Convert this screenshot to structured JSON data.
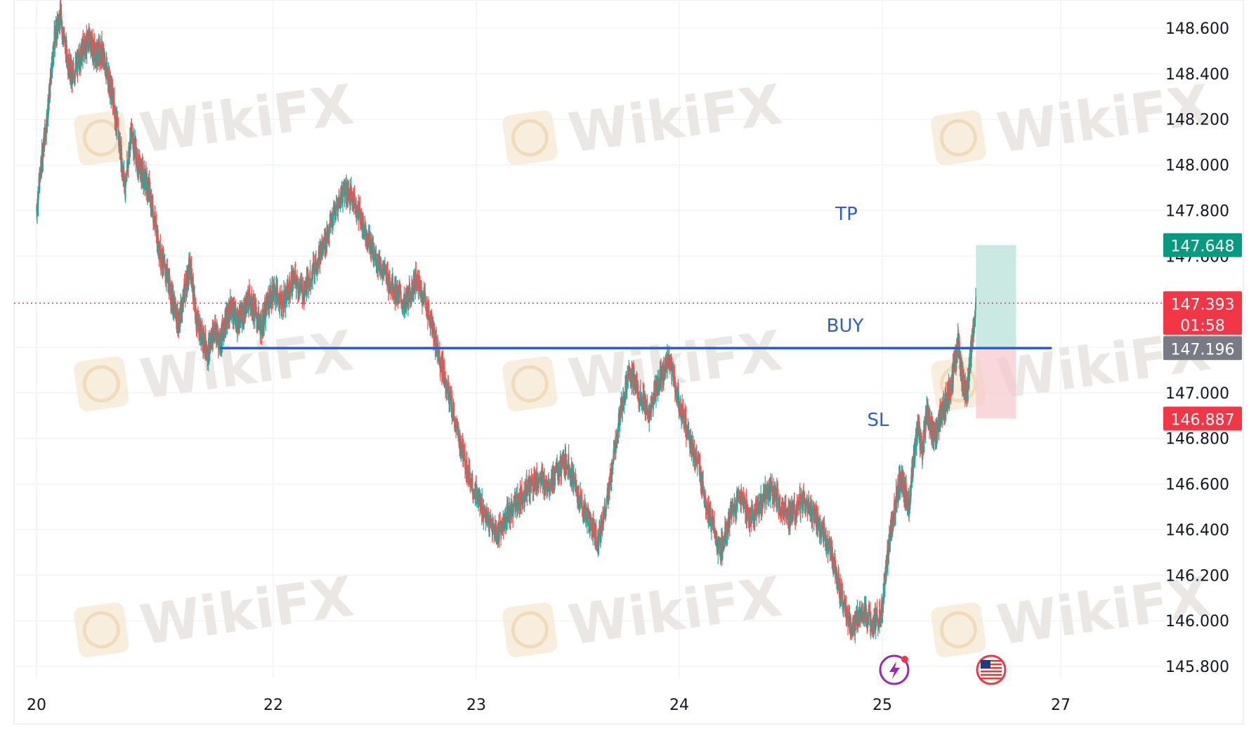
{
  "colors": {
    "up": "#26a69a",
    "down": "#ef5350",
    "grid": "#f0f3fa",
    "level_line": "#2f5fc4",
    "tp_zone": "#b2dfd6",
    "sl_zone": "#f7c7cc",
    "current_price": "#f23645",
    "tp_badge": "#089981",
    "entry_badge": "#787b86",
    "sl_badge": "#f23645"
  },
  "watermark": {
    "text": "WikiFX",
    "icon": "wikifx-logo-icon"
  },
  "chart_data": {
    "type": "line",
    "title": "",
    "xlabel": "",
    "ylabel": "",
    "x_ticks": [
      {
        "day": 20,
        "label": "20"
      },
      {
        "day": 22,
        "label": "22"
      },
      {
        "day": 23,
        "label": "23"
      },
      {
        "day": 24,
        "label": "24"
      },
      {
        "day": 25,
        "label": "25"
      },
      {
        "day": 27,
        "label": "27"
      }
    ],
    "y_ticks": [
      "145.800",
      "146.000",
      "146.200",
      "146.400",
      "146.600",
      "146.800",
      "147.000",
      "147.200",
      "147.400",
      "147.600",
      "147.800",
      "148.000",
      "148.200",
      "148.400",
      "148.600"
    ],
    "ylim": [
      145.72,
      148.72
    ],
    "grid": true,
    "series": [
      {
        "points": [
          [
            20.0,
            147.8
          ],
          [
            20.05,
            148.05
          ],
          [
            20.1,
            148.25
          ],
          [
            20.15,
            148.55
          ],
          [
            20.2,
            148.66
          ],
          [
            20.25,
            148.5
          ],
          [
            20.3,
            148.38
          ],
          [
            20.35,
            148.45
          ],
          [
            20.4,
            148.52
          ],
          [
            20.45,
            148.55
          ],
          [
            20.5,
            148.48
          ],
          [
            20.55,
            148.5
          ],
          [
            20.6,
            148.4
          ],
          [
            20.65,
            148.28
          ],
          [
            20.7,
            148.1
          ],
          [
            20.75,
            147.9
          ],
          [
            20.8,
            148.15
          ],
          [
            20.85,
            148.02
          ],
          [
            20.9,
            147.95
          ],
          [
            20.95,
            147.9
          ],
          [
            21.0,
            147.75
          ],
          [
            21.05,
            147.6
          ],
          [
            21.1,
            147.52
          ],
          [
            21.15,
            147.4
          ],
          [
            21.2,
            147.3
          ],
          [
            21.25,
            147.45
          ],
          [
            21.3,
            147.55
          ],
          [
            21.35,
            147.32
          ],
          [
            21.4,
            147.25
          ],
          [
            21.45,
            147.18
          ],
          [
            21.5,
            147.28
          ],
          [
            21.55,
            147.22
          ],
          [
            21.6,
            147.32
          ],
          [
            21.65,
            147.38
          ],
          [
            21.7,
            147.3
          ],
          [
            21.75,
            147.36
          ],
          [
            21.8,
            147.42
          ],
          [
            21.85,
            147.35
          ],
          [
            21.9,
            147.28
          ],
          [
            21.95,
            147.4
          ],
          [
            22.0,
            147.45
          ],
          [
            22.05,
            147.4
          ],
          [
            22.1,
            147.5
          ],
          [
            22.15,
            147.44
          ],
          [
            22.2,
            147.55
          ],
          [
            22.25,
            147.65
          ],
          [
            22.3,
            147.78
          ],
          [
            22.35,
            147.9
          ],
          [
            22.4,
            147.84
          ],
          [
            22.45,
            147.72
          ],
          [
            22.5,
            147.6
          ],
          [
            22.55,
            147.52
          ],
          [
            22.6,
            147.45
          ],
          [
            22.65,
            147.38
          ],
          [
            22.7,
            147.5
          ],
          [
            22.75,
            147.4
          ],
          [
            22.8,
            147.22
          ],
          [
            22.85,
            147.05
          ],
          [
            22.9,
            146.85
          ],
          [
            22.95,
            146.68
          ],
          [
            23.0,
            146.55
          ],
          [
            23.05,
            146.45
          ],
          [
            23.1,
            146.38
          ],
          [
            23.15,
            146.45
          ],
          [
            23.2,
            146.52
          ],
          [
            23.25,
            146.58
          ],
          [
            23.3,
            146.62
          ],
          [
            23.35,
            146.6
          ],
          [
            23.4,
            146.65
          ],
          [
            23.45,
            146.7
          ],
          [
            23.5,
            146.55
          ],
          [
            23.55,
            146.45
          ],
          [
            23.6,
            146.35
          ],
          [
            23.65,
            146.55
          ],
          [
            23.7,
            146.85
          ],
          [
            23.75,
            147.1
          ],
          [
            23.8,
            147.0
          ],
          [
            23.85,
            146.9
          ],
          [
            23.9,
            147.05
          ],
          [
            23.95,
            147.15
          ],
          [
            24.0,
            146.95
          ],
          [
            24.05,
            146.8
          ],
          [
            24.1,
            146.65
          ],
          [
            24.15,
            146.45
          ],
          [
            24.2,
            146.3
          ],
          [
            24.25,
            146.45
          ],
          [
            24.3,
            146.55
          ],
          [
            24.35,
            146.45
          ],
          [
            24.4,
            146.52
          ],
          [
            24.45,
            146.58
          ],
          [
            24.5,
            146.5
          ],
          [
            24.55,
            146.46
          ],
          [
            24.6,
            146.52
          ],
          [
            24.65,
            146.48
          ],
          [
            24.7,
            146.4
          ],
          [
            24.75,
            146.3
          ],
          [
            24.8,
            146.1
          ],
          [
            24.85,
            145.95
          ],
          [
            24.9,
            146.05
          ],
          [
            24.95,
            145.98
          ],
          [
            25.0,
            146.05
          ],
          [
            25.05,
            146.25
          ],
          [
            25.1,
            146.4
          ],
          [
            25.15,
            146.52
          ],
          [
            25.2,
            146.62
          ],
          [
            25.25,
            146.58
          ],
          [
            25.3,
            146.5
          ],
          [
            25.35,
            146.7
          ],
          [
            25.4,
            146.85
          ],
          [
            25.45,
            146.75
          ],
          [
            25.5,
            146.92
          ],
          [
            25.55,
            146.85
          ],
          [
            25.6,
            146.8
          ],
          [
            25.65,
            146.9
          ],
          [
            25.7,
            146.95
          ],
          [
            25.75,
            147.0
          ],
          [
            25.8,
            147.1
          ],
          [
            25.85,
            147.22
          ],
          [
            25.9,
            147.05
          ],
          [
            25.95,
            147.0
          ],
          [
            26.0,
            147.2
          ],
          [
            26.05,
            147.393
          ]
        ]
      }
    ],
    "annotations": {
      "level": 147.196,
      "level_start_day": 21.55,
      "level_end_day": 26.9,
      "current_price": 147.393,
      "position": {
        "entry": 147.196,
        "take_profit": 147.648,
        "stop_loss": 146.887,
        "start_day": 26.05,
        "end_day": 26.5
      },
      "labels": {
        "tp": "TP",
        "buy": "BUY",
        "sl": "SL"
      },
      "badges": {
        "tp_price": "147.648",
        "current_price": "147.393",
        "countdown": "01:58",
        "entry_price": "147.196",
        "sl_price": "146.887"
      }
    }
  },
  "bottom_icons": [
    {
      "name": "lightning-icon"
    },
    {
      "name": "us-flag-icon"
    }
  ]
}
